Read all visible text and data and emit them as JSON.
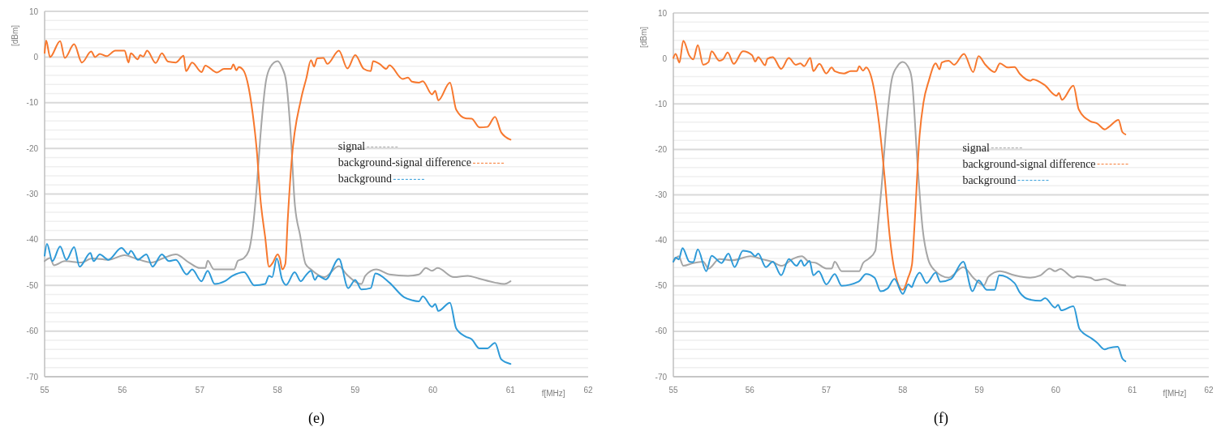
{
  "chart_data": [
    {
      "type": "line",
      "title": "(e)",
      "xlabel": "f[MHz]",
      "ylabel": "[dBm]",
      "xlim": [
        55,
        62
      ],
      "xticks": [
        55,
        56,
        57,
        58,
        59,
        60,
        61,
        62
      ],
      "ylim": [
        -70,
        10
      ],
      "yticks": [
        -70,
        {
          "value": -68,
          "label": null
        },
        {
          "value": -66,
          "label": null
        },
        {
          "value": -64,
          "label": null
        },
        {
          "value": -62,
          "label": null
        },
        -60,
        {
          "value": -58,
          "label": null
        },
        {
          "value": -56,
          "label": null
        },
        {
          "value": -54,
          "label": null
        },
        {
          "value": -52,
          "label": null
        },
        -50,
        {
          "value": -48,
          "label": null
        },
        {
          "value": -46,
          "label": null
        },
        {
          "value": -44,
          "label": null
        },
        {
          "value": -42,
          "label": null
        },
        -40,
        {
          "value": -38,
          "label": null
        },
        {
          "value": -36,
          "label": null
        },
        {
          "value": -34,
          "label": null
        },
        {
          "value": -32,
          "label": null
        },
        -30,
        {
          "value": -28,
          "label": null
        },
        {
          "value": -26,
          "label": null
        },
        {
          "value": -24,
          "label": null
        },
        {
          "value": -22,
          "label": null
        },
        -20,
        {
          "value": -18,
          "label": null
        },
        {
          "value": -16,
          "label": null
        },
        {
          "value": -14,
          "label": null
        },
        {
          "value": -12,
          "label": null
        },
        -10,
        {
          "value": -8,
          "label": null
        },
        {
          "value": -6,
          "label": null
        },
        {
          "value": -4,
          "label": null
        },
        {
          "value": -2,
          "label": null
        },
        0,
        {
          "value": 2,
          "label": null
        },
        {
          "value": 4,
          "label": null
        },
        {
          "value": 6,
          "label": null
        },
        {
          "value": 8,
          "label": null
        },
        10
      ],
      "grid": "y",
      "legend": "right",
      "line_style": "solid",
      "series": [
        {
          "name": "signal",
          "color": "#a6a6a6",
          "x": [
            55,
            55.07,
            55.12,
            55.26,
            55.47,
            55.61,
            55.82,
            56.03,
            56.17,
            56.38,
            56.52,
            56.69,
            56.86,
            57,
            57.07,
            57.1,
            57.18,
            57.32,
            57.44,
            57.49,
            57.56,
            57.63,
            57.68,
            57.73,
            57.78,
            57.85,
            57.91,
            58,
            58.06,
            58.11,
            58.17,
            58.22,
            58.29,
            58.36,
            58.43,
            58.6,
            58.79,
            58.89,
            59.08,
            59.13,
            59.27,
            59.44,
            59.68,
            59.82,
            59.91,
            59.99,
            60.06,
            60.27,
            60.45,
            60.59,
            60.8,
            60.92,
            61
          ],
          "values": [
            -44.7,
            -44,
            -45.6,
            -44.7,
            -45,
            -44.1,
            -44.4,
            -43.4,
            -44.1,
            -45,
            -44.1,
            -43.2,
            -45,
            -46.2,
            -46.2,
            -44.6,
            -46.5,
            -46.5,
            -46.5,
            -44.6,
            -44.1,
            -42.4,
            -37.6,
            -28.8,
            -17.1,
            -5.3,
            -2.1,
            -0.9,
            -2.4,
            -5.3,
            -17.1,
            -31.8,
            -39,
            -45.3,
            -46.5,
            -48.2,
            -45.8,
            -47.6,
            -49.7,
            -47.9,
            -46.5,
            -47.6,
            -47.9,
            -47.6,
            -46.2,
            -46.8,
            -46.2,
            -48.2,
            -47.9,
            -48.5,
            -49.4,
            -49.7,
            -49.1
          ]
        },
        {
          "name": "background-signal difference",
          "color": "#f7782e",
          "x": [
            55,
            55.02,
            55.07,
            55.2,
            55.26,
            55.38,
            55.48,
            55.6,
            55.65,
            55.71,
            55.8,
            55.91,
            56.03,
            56.08,
            56.11,
            56.2,
            56.23,
            56.27,
            56.32,
            56.43,
            56.51,
            56.59,
            56.69,
            56.79,
            56.82,
            56.9,
            57.02,
            57.07,
            57.22,
            57.31,
            57.4,
            57.43,
            57.47,
            57.5,
            57.56,
            57.61,
            57.68,
            57.73,
            57.78,
            57.84,
            57.89,
            57.94,
            58,
            58.03,
            58.06,
            58.1,
            58.13,
            58.18,
            58.3,
            58.37,
            58.43,
            58.47,
            58.51,
            58.59,
            58.64,
            58.79,
            58.9,
            59,
            59.11,
            59.2,
            59.23,
            59.32,
            59.4,
            59.44,
            59.61,
            59.68,
            59.73,
            59.82,
            59.87,
            59.99,
            60.03,
            60.07,
            60.22,
            60.3,
            60.42,
            60.5,
            60.6,
            60.7,
            60.8,
            60.88,
            61
          ],
          "values": [
            0.9,
            3.6,
            0,
            3.5,
            -0.2,
            2.8,
            -1.2,
            1.2,
            0,
            0.7,
            0.2,
            1.4,
            1.4,
            -1.2,
            0.8,
            -0.5,
            0.4,
            0.1,
            1.4,
            -1.3,
            0.8,
            -1,
            -1.2,
            0.3,
            -3.1,
            -1.2,
            -3.3,
            -1.9,
            -3.4,
            -2.6,
            -2.6,
            -1.6,
            -2.9,
            -2.2,
            -2.9,
            -5.3,
            -12.4,
            -20,
            -31.2,
            -39.4,
            -45.9,
            -45,
            -43.2,
            -44.1,
            -46.5,
            -45.3,
            -35.9,
            -22.9,
            -9.4,
            -4.7,
            -0.7,
            -2.1,
            -0.3,
            -0.2,
            -1.5,
            1.4,
            -2.5,
            0.4,
            -2.6,
            -3.1,
            -0.9,
            -1.6,
            -2.6,
            -1.8,
            -4.8,
            -4.5,
            -5.4,
            -5.6,
            -5.3,
            -8.2,
            -7.4,
            -9.5,
            -5.6,
            -11.5,
            -13.4,
            -13.5,
            -15.4,
            -15.3,
            -13.1,
            -16.5,
            -18.1
          ]
        },
        {
          "name": "background",
          "color": "#2e9ad8",
          "x": [
            55,
            55.03,
            55.1,
            55.2,
            55.28,
            55.38,
            55.45,
            55.59,
            55.63,
            55.71,
            55.82,
            55.99,
            56.08,
            56.11,
            56.2,
            56.31,
            56.39,
            56.51,
            56.6,
            56.69,
            56.83,
            56.9,
            57.02,
            57.1,
            57.19,
            57.32,
            57.42,
            57.57,
            57.7,
            57.84,
            57.89,
            57.93,
            57.99,
            58.06,
            58.11,
            58.22,
            58.3,
            58.36,
            58.43,
            58.48,
            58.52,
            58.62,
            58.79,
            58.91,
            59,
            59.08,
            59.2,
            59.26,
            59.44,
            59.63,
            59.72,
            59.82,
            59.87,
            59.99,
            60.03,
            60.07,
            60.22,
            60.3,
            60.42,
            60.5,
            60.6,
            60.7,
            60.8,
            60.88,
            61
          ],
          "values": [
            -43.5,
            -40.9,
            -44.7,
            -41.5,
            -44.4,
            -41.6,
            -45.9,
            -42.9,
            -44.7,
            -43.2,
            -44.4,
            -41.8,
            -43.2,
            -42.4,
            -44.4,
            -43.2,
            -45.9,
            -43.2,
            -44.7,
            -44.4,
            -47.6,
            -46.5,
            -49.1,
            -46.8,
            -49.7,
            -49.1,
            -47.9,
            -47.1,
            -50,
            -49.7,
            -47.9,
            -48.2,
            -44.1,
            -48.8,
            -49.9,
            -47.1,
            -49.1,
            -47.9,
            -46.8,
            -48.8,
            -47.9,
            -48.7,
            -44.2,
            -50.6,
            -48.8,
            -50.9,
            -50.6,
            -47.4,
            -49.4,
            -52.6,
            -53.2,
            -53.5,
            -52.4,
            -54.7,
            -54.1,
            -55.6,
            -53.8,
            -59.4,
            -61.2,
            -61.8,
            -63.8,
            -63.8,
            -62.6,
            -66.2,
            -67.2
          ]
        }
      ]
    },
    {
      "type": "line",
      "title": "(f)",
      "xlabel": "f[MHz]",
      "ylabel": "[dBm]",
      "xlim": [
        55,
        62
      ],
      "xticks": [
        55,
        56,
        57,
        58,
        59,
        60,
        61,
        62
      ],
      "ylim": [
        -70,
        10
      ],
      "yticks": [
        -70,
        {
          "value": -68,
          "label": null
        },
        {
          "value": -66,
          "label": null
        },
        {
          "value": -64,
          "label": null
        },
        {
          "value": -62,
          "label": null
        },
        -60,
        {
          "value": -58,
          "label": null
        },
        {
          "value": -56,
          "label": null
        },
        {
          "value": -54,
          "label": null
        },
        {
          "value": -52,
          "label": null
        },
        -50,
        {
          "value": -48,
          "label": null
        },
        {
          "value": -46,
          "label": null
        },
        {
          "value": -44,
          "label": null
        },
        {
          "value": -42,
          "label": null
        },
        -40,
        {
          "value": -38,
          "label": null
        },
        {
          "value": -36,
          "label": null
        },
        {
          "value": -34,
          "label": null
        },
        {
          "value": -32,
          "label": null
        },
        -30,
        {
          "value": -28,
          "label": null
        },
        {
          "value": -26,
          "label": null
        },
        {
          "value": -24,
          "label": null
        },
        {
          "value": -22,
          "label": null
        },
        -20,
        {
          "value": -18,
          "label": null
        },
        {
          "value": -16,
          "label": null
        },
        {
          "value": -14,
          "label": null
        },
        {
          "value": -12,
          "label": null
        },
        -10,
        {
          "value": -8,
          "label": null
        },
        {
          "value": -6,
          "label": null
        },
        {
          "value": -4,
          "label": null
        },
        {
          "value": -2,
          "label": null
        },
        0,
        {
          "value": 2,
          "label": null
        },
        {
          "value": 4,
          "label": null
        },
        {
          "value": 6,
          "label": null
        },
        {
          "value": 8,
          "label": null
        },
        10
      ],
      "grid": "y",
      "legend": "right",
      "line_style": "solid",
      "series": [
        {
          "name": "signal",
          "color": "#a6a6a6",
          "x": [
            55,
            55.07,
            55.13,
            55.26,
            55.39,
            55.46,
            55.6,
            55.77,
            56.01,
            56.15,
            56.29,
            56.42,
            56.56,
            56.68,
            56.77,
            56.87,
            57,
            57.07,
            57.11,
            57.2,
            57.32,
            57.43,
            57.48,
            57.55,
            57.64,
            57.67,
            57.72,
            57.79,
            57.86,
            57.93,
            58,
            58.09,
            58.12,
            58.19,
            58.26,
            58.33,
            58.41,
            58.6,
            58.79,
            58.92,
            59.06,
            59.12,
            59.27,
            59.46,
            59.66,
            59.8,
            59.92,
            59.99,
            60.06,
            60.23,
            60.28,
            60.45,
            60.52,
            60.64,
            60.81,
            60.91
          ],
          "values": [
            -44.7,
            -43.5,
            -45.6,
            -45,
            -44.7,
            -46.2,
            -44.1,
            -44.4,
            -43.5,
            -44.1,
            -44.7,
            -45.6,
            -44.1,
            -43.5,
            -44.7,
            -45,
            -46.2,
            -46.2,
            -44.7,
            -46.8,
            -46.8,
            -46.8,
            -45,
            -44.1,
            -42.3,
            -37.6,
            -28.7,
            -13.8,
            -4.3,
            -1.7,
            -0.8,
            -2.6,
            -4.9,
            -22.7,
            -37.6,
            -44.1,
            -46.5,
            -48.2,
            -45.9,
            -48.2,
            -49.9,
            -48,
            -46.8,
            -47.7,
            -48.2,
            -47.7,
            -46.2,
            -46.8,
            -46.3,
            -48.2,
            -47.9,
            -48.2,
            -48.8,
            -48.5,
            -49.7,
            -49.9
          ]
        },
        {
          "name": "background-signal difference",
          "color": "#f7782e",
          "x": [
            55,
            55.03,
            55.08,
            55.13,
            55.21,
            55.26,
            55.32,
            55.39,
            55.46,
            55.5,
            55.6,
            55.65,
            55.71,
            55.79,
            55.91,
            56.03,
            56.07,
            56.11,
            56.2,
            56.23,
            56.3,
            56.41,
            56.51,
            56.6,
            56.66,
            56.71,
            56.79,
            56.83,
            56.91,
            57,
            57.07,
            57.11,
            57.23,
            57.32,
            57.4,
            57.43,
            57.48,
            57.52,
            57.6,
            57.69,
            57.76,
            57.83,
            57.89,
            58,
            58.07,
            58.12,
            58.15,
            58.22,
            58.27,
            58.34,
            58.43,
            58.48,
            58.51,
            58.6,
            58.67,
            58.8,
            58.92,
            58.99,
            59.08,
            59.2,
            59.27,
            59.37,
            59.46,
            59.53,
            59.67,
            59.7,
            59.85,
            60.01,
            60.04,
            60.08,
            60.23,
            60.3,
            60.45,
            60.54,
            60.64,
            60.69,
            60.82,
            60.87,
            60.91
          ],
          "values": [
            0.1,
            1,
            -0.9,
            3.9,
            0.6,
            -0.2,
            2.9,
            -1.4,
            -0.8,
            1.6,
            -0.5,
            -0.2,
            1.3,
            -1.2,
            1.6,
            0.7,
            -0.7,
            0.3,
            -1.5,
            -0.1,
            0.3,
            -2.3,
            0.1,
            -1.4,
            -1.1,
            -1.7,
            0.1,
            -2.8,
            -1.2,
            -3.3,
            -2,
            -2.8,
            -3.3,
            -2.8,
            -2.8,
            -1.7,
            -2.7,
            -2,
            -4.9,
            -14.4,
            -25.7,
            -39.3,
            -46.5,
            -50.9,
            -48.2,
            -45.3,
            -37.6,
            -16.8,
            -9.7,
            -4.9,
            -1.1,
            -2.4,
            -0.9,
            -0.5,
            -1.4,
            1,
            -3,
            0.5,
            -1.4,
            -3,
            -1.1,
            -2,
            -1.9,
            -3.4,
            -4.9,
            -4.6,
            -5.8,
            -8.2,
            -7.6,
            -9.1,
            -6,
            -11.2,
            -13.8,
            -14.3,
            -15.6,
            -15.1,
            -13.5,
            -16.2,
            -16.7
          ]
        },
        {
          "name": "background",
          "color": "#2e9ad8",
          "x": [
            55,
            55.03,
            55.07,
            55.12,
            55.21,
            55.26,
            55.32,
            55.43,
            55.5,
            55.63,
            55.72,
            55.8,
            55.91,
            56.01,
            56.07,
            56.11,
            56.21,
            56.3,
            56.41,
            56.51,
            56.61,
            56.67,
            56.71,
            56.78,
            56.83,
            56.9,
            57,
            57.11,
            57.2,
            57.42,
            57.52,
            57.63,
            57.71,
            57.8,
            57.89,
            58,
            58.07,
            58.12,
            58.14,
            58.22,
            58.31,
            58.43,
            58.49,
            58.63,
            58.79,
            58.91,
            58.99,
            59.1,
            59.2,
            59.26,
            59.46,
            59.53,
            59.65,
            59.8,
            59.86,
            59.99,
            60.03,
            60.07,
            60.23,
            60.31,
            60.47,
            60.54,
            60.64,
            60.69,
            60.81,
            60.87,
            60.91
          ],
          "values": [
            -44.7,
            -43.8,
            -44.2,
            -41.7,
            -44.7,
            -44.8,
            -42,
            -46.8,
            -43.4,
            -45,
            -42.9,
            -45.9,
            -42.3,
            -42.6,
            -43.5,
            -42.9,
            -45.9,
            -44.7,
            -47.7,
            -44.1,
            -45.6,
            -44.4,
            -45.6,
            -44.5,
            -47.7,
            -46.8,
            -49.7,
            -47.4,
            -50,
            -49.1,
            -47.4,
            -48.2,
            -51.2,
            -50.6,
            -48.5,
            -51.8,
            -49.7,
            -50.3,
            -49.4,
            -47.1,
            -49.4,
            -47.1,
            -49.1,
            -48.5,
            -44.7,
            -51.2,
            -48.8,
            -50.9,
            -50.9,
            -47.7,
            -49.4,
            -51.5,
            -53,
            -53.3,
            -52.7,
            -54.8,
            -54.2,
            -55.4,
            -54.5,
            -59.5,
            -61.6,
            -62.5,
            -64,
            -63.7,
            -63.4,
            -66,
            -66.6
          ]
        }
      ]
    }
  ]
}
